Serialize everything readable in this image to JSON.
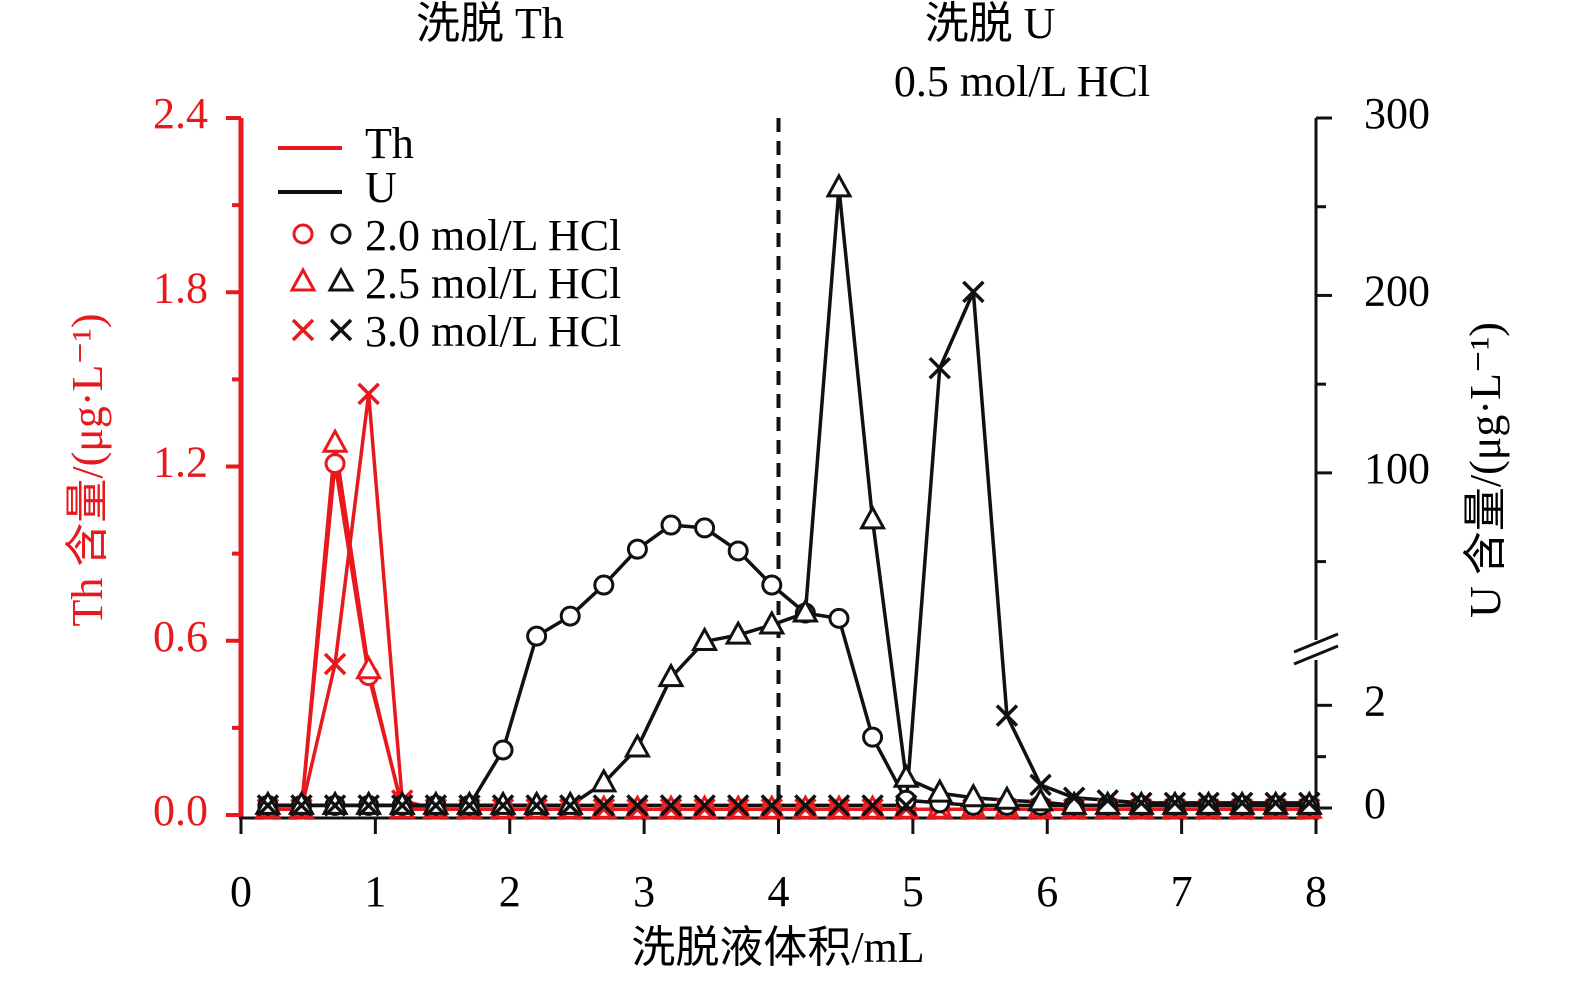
{
  "chart_data": {
    "type": "line",
    "annotations": [
      "洗脱 Th",
      "洗脱 U",
      "0.5  mol/L HCl"
    ],
    "xlabel": "洗脱液体积/mL",
    "ylabel": "Th 含量/(μg·L⁻¹)",
    "y2label": "U 含量/(μg·L⁻¹)",
    "xlim": [
      0,
      8
    ],
    "xticks": [
      0,
      1,
      2,
      3,
      4,
      5,
      6,
      7,
      8
    ],
    "ylim": [
      0,
      2.4
    ],
    "yticks": [
      {
        "value": 0,
        "label": "0.0"
      },
      {
        "value": 0.6,
        "label": "0.6"
      },
      {
        "value": 1.2,
        "label": "1.2"
      },
      {
        "value": 1.8,
        "label": "1.8"
      },
      {
        "value": 2.4,
        "label": "2.4"
      }
    ],
    "yminor": [
      0.3,
      0.9,
      1.5,
      2.1
    ],
    "y2lim": [
      0,
      300
    ],
    "y2_segments": [
      [
        0,
        3
      ],
      [
        3,
        300
      ]
    ],
    "y2ticks": [
      0,
      2,
      100,
      200,
      300
    ],
    "y2minor": [
      1,
      50,
      150,
      250
    ],
    "divider_x": 4,
    "grid": false,
    "conditions": [
      {
        "label": "2.0  mol/L HCl",
        "marker": "circle"
      },
      {
        "label": "2.5  mol/L HCl",
        "marker": "triangle"
      },
      {
        "label": "3.0  mol/L HCl",
        "marker": "cross"
      }
    ],
    "x": [
      0.2,
      0.45,
      0.7,
      0.95,
      1.2,
      1.45,
      1.7,
      1.95,
      2.2,
      2.45,
      2.7,
      2.95,
      3.2,
      3.45,
      3.7,
      3.95,
      4.2,
      4.45,
      4.7,
      4.95,
      5.2,
      5.45,
      5.7,
      5.95,
      6.2,
      6.45,
      6.7,
      6.95,
      7.2,
      7.45,
      7.7,
      7.95
    ],
    "series": [
      {
        "name": "Th",
        "color": "#e8191c",
        "axis": "y",
        "values": [
          [
            0.02,
            0.02,
            1.21,
            0.48,
            0.03,
            0.02,
            0.02,
            0.02,
            0.02,
            0.02,
            0.02,
            0.02,
            0.02,
            0.02,
            0.02,
            0.02,
            0.02,
            0.02,
            0.02,
            0.02,
            0.02,
            0.02,
            0.02,
            0.02,
            0.02,
            0.02,
            0.02,
            0.02,
            0.02,
            0.02,
            0.02,
            0.02
          ],
          [
            0.02,
            0.02,
            1.28,
            0.5,
            0.02,
            0.02,
            0.02,
            0.02,
            0.02,
            0.02,
            0.02,
            0.02,
            0.02,
            0.02,
            0.02,
            0.02,
            0.02,
            0.02,
            0.02,
            0.02,
            0.02,
            0.02,
            0.02,
            0.02,
            0.02,
            0.02,
            0.02,
            0.02,
            0.02,
            0.02,
            0.02,
            0.02
          ],
          [
            0.02,
            0.02,
            0.52,
            1.45,
            0.05,
            0.02,
            0.02,
            0.02,
            0.02,
            0.02,
            0.02,
            0.02,
            0.02,
            0.02,
            0.02,
            0.02,
            0.02,
            0.02,
            0.02,
            0.02,
            0.02,
            0.02,
            0.02,
            0.02,
            0.02,
            0.02,
            0.02,
            0.02,
            0.02,
            0.02,
            0.02,
            0.02
          ]
        ]
      },
      {
        "name": "U",
        "color": "#111111",
        "axis": "y2",
        "values": [
          [
            0.05,
            0.05,
            0.05,
            0.05,
            0.05,
            0.05,
            0.05,
            1.13,
            8,
            19.3,
            36.8,
            57,
            70.6,
            69,
            56,
            36.8,
            21,
            18,
            1.38,
            0.15,
            0.1,
            0.05,
            0.05,
            0.05,
            0.05,
            0.05,
            0.05,
            0.05,
            0.05,
            0.05,
            0.05,
            0.05
          ],
          [
            0.05,
            0.05,
            0.05,
            0.05,
            0.05,
            0.05,
            0.05,
            0.05,
            0.05,
            0.05,
            0.49,
            1.17,
            2.54,
            5,
            8.6,
            14.3,
            21,
            260.6,
            73.5,
            0.58,
            0.29,
            0.2,
            0.15,
            0.12,
            0.05,
            0.05,
            0.05,
            0.05,
            0.05,
            0.05,
            0.05,
            0.05
          ],
          [
            0.05,
            0.05,
            0.05,
            0.05,
            0.05,
            0.05,
            0.05,
            0.05,
            0.05,
            0.05,
            0.05,
            0.05,
            0.05,
            0.05,
            0.05,
            0.05,
            0.05,
            0.05,
            0.05,
            0.05,
            159,
            202,
            1.8,
            0.45,
            0.2,
            0.15,
            0.1,
            0.1,
            0.1,
            0.1,
            0.1,
            0.1
          ]
        ]
      }
    ]
  }
}
